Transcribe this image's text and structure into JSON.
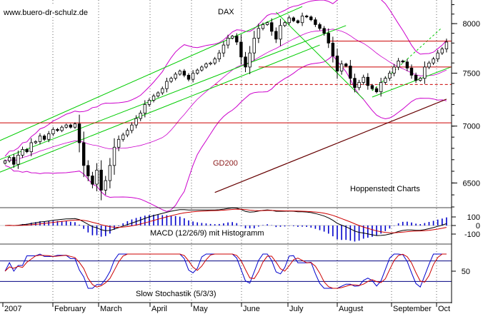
{
  "watermark": "www.buero-dr-schulz.de",
  "colors": {
    "candle_up": "#ffffff",
    "candle_down": "#000000",
    "bollinger": "#cc00cc",
    "trend_channel": "#00cc00",
    "support_resistance": "#cc0000",
    "gd200": "#660000",
    "macd_line": "#000000",
    "macd_signal": "#cc0000",
    "macd_histogram": "#0000cc",
    "stoch_k": "#0000cc",
    "stoch_d": "#cc0000",
    "stoch_levels": "#000080",
    "grid": "#000000"
  },
  "chart_data": [
    {
      "type": "line",
      "title": "DAX",
      "subtitle": "Hoppenstedt Charts",
      "ylim": [
        6300,
        8250
      ],
      "yscale": "log",
      "yticks": [
        6500,
        7000,
        7500,
        8000
      ],
      "x_tick_labels": [
        "2007",
        "February",
        "March",
        "April",
        "May",
        "June",
        "July",
        "August",
        "September",
        "Oct"
      ],
      "grid": "vertical-dotted",
      "close": [
        6690,
        6720,
        6660,
        6740,
        6790,
        6770,
        6850,
        6860,
        6910,
        6880,
        6930,
        6970,
        6960,
        6990,
        7010,
        6990,
        7020,
        6850,
        6650,
        6560,
        6490,
        6610,
        6440,
        6520,
        6650,
        6810,
        6880,
        6920,
        6960,
        7010,
        7070,
        7120,
        7200,
        7240,
        7280,
        7310,
        7350,
        7420,
        7450,
        7490,
        7520,
        7480,
        7440,
        7500,
        7530,
        7560,
        7590,
        7600,
        7640,
        7700,
        7780,
        7850,
        7870,
        7810,
        7660,
        7560,
        7700,
        7850,
        7950,
        7990,
        8010,
        7920,
        7840,
        7980,
        8010,
        8060,
        8030,
        8010,
        8080,
        8070,
        8040,
        7990,
        7950,
        7900,
        7800,
        7670,
        7520,
        7590,
        7570,
        7450,
        7360,
        7410,
        7460,
        7380,
        7350,
        7320,
        7410,
        7450,
        7500,
        7560,
        7620,
        7610,
        7550,
        7480,
        7430,
        7450,
        7560,
        7600,
        7640,
        7700,
        7740,
        7810
      ],
      "series": [
        {
          "name": "GD200",
          "values": [
            6420,
            7250
          ]
        }
      ],
      "horizontal_levels": [
        7030,
        7560,
        7820
      ],
      "dashed_levels": [
        7390
      ]
    },
    {
      "type": "line",
      "title": "MACD (12/26/9) mit Histogramm",
      "ylim": [
        -160,
        160
      ],
      "yticks": [
        100,
        0,
        -100
      ]
    },
    {
      "type": "line",
      "title": "Slow Stochastik (5/3/3)",
      "ylim": [
        0,
        100
      ],
      "yticks": [
        50
      ],
      "levels": [
        20,
        80
      ]
    }
  ]
}
